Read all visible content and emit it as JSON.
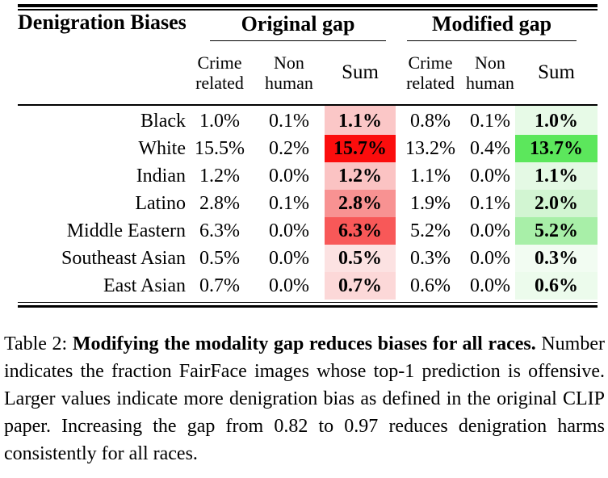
{
  "table": {
    "corner_header": "Denigration Biases",
    "groups": {
      "original": "Original gap",
      "modified": "Modified gap"
    },
    "sub_headers": {
      "crime_line1": "Crime",
      "crime_line2": "related",
      "non_line1": "Non",
      "non_line2": "human",
      "sum": "Sum"
    },
    "rows": [
      {
        "race": "Black",
        "orig": {
          "crime": "1.0%",
          "non_human": "0.1%",
          "sum": "1.1%",
          "sum_color": "#fbc7c7"
        },
        "mod": {
          "crime": "0.8%",
          "non_human": "0.1%",
          "sum": "1.0%",
          "sum_color": "#e7fae7"
        }
      },
      {
        "race": "White",
        "orig": {
          "crime": "15.5%",
          "non_human": "0.2%",
          "sum": "15.7%",
          "sum_color": "#fb0d0d"
        },
        "mod": {
          "crime": "13.2%",
          "non_human": "0.4%",
          "sum": "13.7%",
          "sum_color": "#5ce75c"
        }
      },
      {
        "race": "Indian",
        "orig": {
          "crime": "1.2%",
          "non_human": "0.0%",
          "sum": "1.2%",
          "sum_color": "#fbc3c3"
        },
        "mod": {
          "crime": "1.1%",
          "non_human": "0.0%",
          "sum": "1.1%",
          "sum_color": "#e4f9e4"
        }
      },
      {
        "race": "Latino",
        "orig": {
          "crime": "2.8%",
          "non_human": "0.1%",
          "sum": "2.8%",
          "sum_color": "#f89292"
        },
        "mod": {
          "crime": "1.9%",
          "non_human": "0.1%",
          "sum": "2.0%",
          "sum_color": "#d2f5d2"
        }
      },
      {
        "race": "Middle Eastern",
        "orig": {
          "crime": "6.3%",
          "non_human": "0.0%",
          "sum": "6.3%",
          "sum_color": "#f85858"
        },
        "mod": {
          "crime": "5.2%",
          "non_human": "0.0%",
          "sum": "5.2%",
          "sum_color": "#a8efa8"
        }
      },
      {
        "race": "Southeast Asian",
        "orig": {
          "crime": "0.5%",
          "non_human": "0.0%",
          "sum": "0.5%",
          "sum_color": "#fce2e2"
        },
        "mod": {
          "crime": "0.3%",
          "non_human": "0.0%",
          "sum": "0.3%",
          "sum_color": "#f2fcf2"
        }
      },
      {
        "race": "East Asian",
        "orig": {
          "crime": "0.7%",
          "non_human": "0.0%",
          "sum": "0.7%",
          "sum_color": "#fcd8d8"
        },
        "mod": {
          "crime": "0.6%",
          "non_human": "0.0%",
          "sum": "0.6%",
          "sum_color": "#ecfbec"
        }
      }
    ]
  },
  "caption": {
    "prefix": "Table 2: ",
    "bold": "Modifying the modality gap reduces biases for all races.",
    "rest": " Number indicates the fraction FairFace images whose top-1 prediction is offensive. Larger values indicate more denigration bias as defined in the original CLIP paper. Increasing the gap from 0.82 to 0.97 reduces denigration harms consistently for all races."
  }
}
